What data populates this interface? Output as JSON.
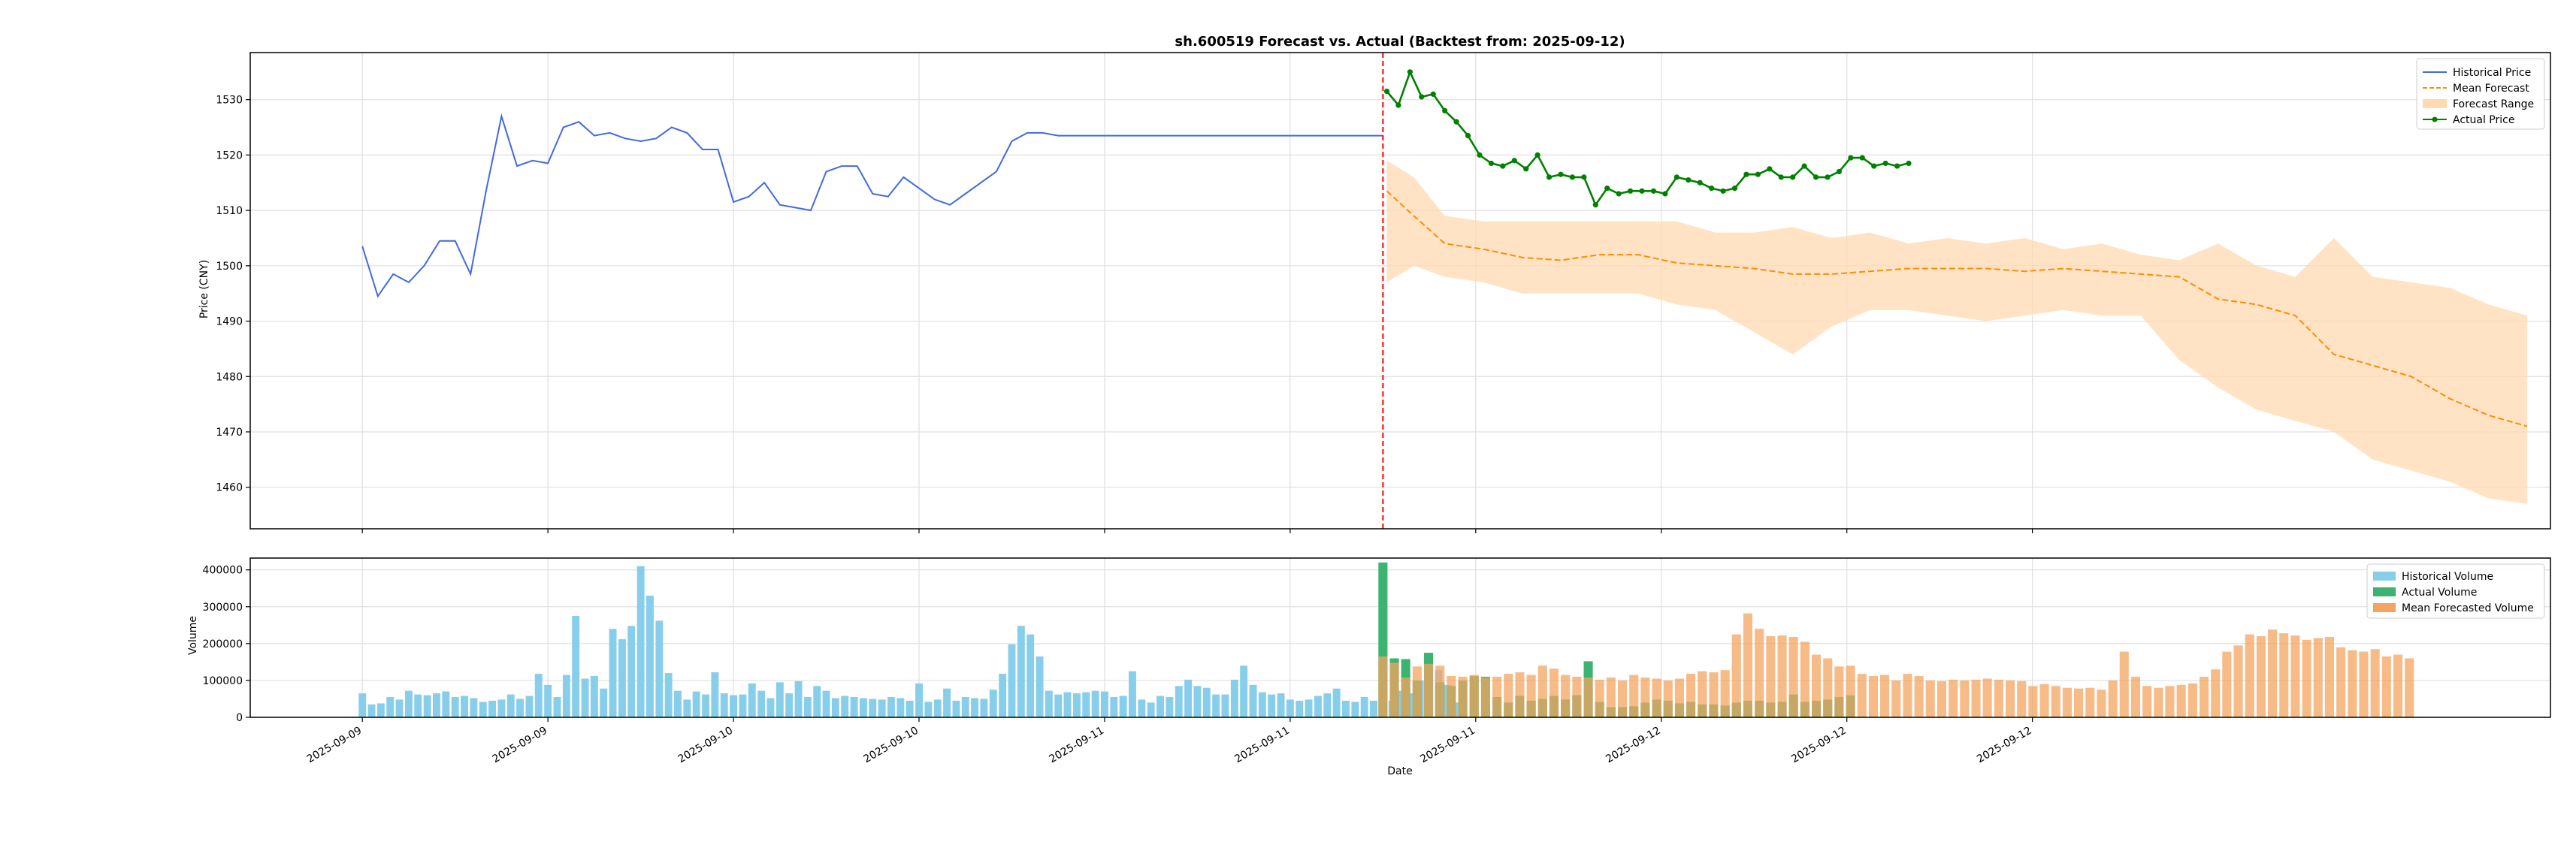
{
  "chart_data": [
    {
      "type": "line",
      "title": "sh.600519 Forecast vs. Actual (Backtest from: 2025-09-12)",
      "xlabel": "",
      "ylabel": "Price (CNY)",
      "ylim": [
        1452.5,
        1538.5
      ],
      "yticks": [
        1460,
        1470,
        1480,
        1490,
        1500,
        1510,
        1520,
        1530
      ],
      "grid": true,
      "legend_position": "top-right",
      "x_index_range": [
        -29,
        566
      ],
      "cutoff_index": 264,
      "series": [
        {
          "name": "Historical Price",
          "color": "#4169e1",
          "style": "solid",
          "x": [
            0,
            4,
            8,
            12,
            16,
            20,
            24,
            28,
            32,
            36,
            40,
            44,
            48,
            52,
            56,
            60,
            64,
            68,
            72,
            76,
            80,
            84,
            88,
            92,
            96,
            100,
            104,
            108,
            112,
            116,
            120,
            124,
            128,
            132,
            136,
            140,
            144,
            148,
            152,
            156,
            160,
            164,
            168,
            172,
            176,
            180,
            184,
            188,
            192,
            196,
            200,
            204,
            208,
            212,
            216,
            220,
            224,
            228,
            232,
            236,
            240,
            244,
            248,
            252,
            256,
            260,
            264
          ],
          "y": [
            1503.5,
            1494.5,
            1498.5,
            1497,
            1500,
            1504.5,
            1504.5,
            1498.5,
            1513.5,
            1527,
            1518,
            1519,
            1518.5,
            1525,
            1526,
            1523.5,
            1524,
            1523,
            1522.5,
            1523,
            1525,
            1524,
            1521,
            1521,
            1511.5,
            1512.5,
            1515,
            1511,
            1510.5,
            1510,
            1517,
            1518,
            1518,
            1513,
            1512.5,
            1516,
            1514,
            1512,
            1511,
            1513,
            1515,
            1517,
            1522.5,
            1524,
            1524,
            1523.5,
            1523.5,
            1523.5,
            1523.5,
            1523.5,
            1523.5,
            1523.5,
            1523.5,
            1523.5,
            1523.5,
            1523.5,
            1523.5,
            1523.5,
            1523.5,
            1523.5,
            1523.5,
            1523.5,
            1523.5,
            1523.5,
            1523.5,
            1523.5,
            1523.5
          ]
        },
        {
          "name": "Mean Forecast",
          "color": "#ff8c00",
          "style": "dashed",
          "x": [
            265,
            272,
            280,
            290,
            300,
            310,
            320,
            330,
            340,
            350,
            360,
            370,
            380,
            390,
            400,
            410,
            420,
            430,
            440,
            450,
            460,
            470,
            480,
            490,
            500,
            510,
            520,
            530,
            540,
            550,
            560
          ],
          "y": [
            1513.5,
            1509,
            1504,
            1503,
            1501.5,
            1501,
            1502,
            1502,
            1500.5,
            1500,
            1499.5,
            1498.5,
            1498.5,
            1499,
            1499.5,
            1499.5,
            1499.5,
            1499,
            1499.5,
            1499,
            1498.5,
            1498,
            1494,
            1493,
            1491,
            1484,
            1482,
            1480,
            1476,
            1473,
            1471
          ]
        },
        {
          "name": "Forecast Range",
          "color": "#ffdab0",
          "style": "band",
          "x": [
            265,
            272,
            280,
            290,
            300,
            310,
            320,
            330,
            340,
            350,
            360,
            370,
            380,
            390,
            400,
            410,
            420,
            430,
            440,
            450,
            460,
            470,
            480,
            490,
            500,
            510,
            520,
            530,
            540,
            550,
            560
          ],
          "y_low": [
            1497,
            1500,
            1498,
            1497,
            1495,
            1495,
            1495,
            1495,
            1493,
            1492,
            1488,
            1484,
            1489,
            1492,
            1492,
            1491,
            1490,
            1491,
            1492,
            1491,
            1491,
            1483,
            1478,
            1474,
            1472,
            1470,
            1465,
            1463,
            1461,
            1458,
            1457
          ],
          "y_high": [
            1519,
            1516,
            1509,
            1508,
            1508,
            1508,
            1508,
            1508,
            1508,
            1506,
            1506,
            1507,
            1505,
            1506,
            1504,
            1505,
            1504,
            1505,
            1503,
            1504,
            1502,
            1501,
            1504,
            1500,
            1498,
            1505,
            1498,
            1497,
            1496,
            1493,
            1491
          ]
        },
        {
          "name": "Actual Price",
          "color": "#008000",
          "style": "solid-marker",
          "x": [
            265,
            268,
            271,
            274,
            277,
            280,
            283,
            286,
            289,
            292,
            295,
            298,
            301,
            304,
            307,
            310,
            313,
            316,
            319,
            322,
            325,
            328,
            331,
            334,
            337,
            340,
            343,
            346,
            349,
            352,
            355,
            358,
            361,
            364,
            367,
            370,
            373,
            376,
            379,
            382,
            385,
            388,
            391,
            394,
            397,
            400
          ],
          "y": [
            1531.5,
            1529,
            1535,
            1530.5,
            1531,
            1528,
            1526,
            1523.5,
            1520,
            1518.5,
            1518,
            1519,
            1517.5,
            1520,
            1516,
            1516.5,
            1516,
            1516,
            1511,
            1514,
            1513,
            1513.5,
            1513.5,
            1513.5,
            1513,
            1516,
            1515.5,
            1515,
            1514,
            1513.5,
            1514,
            1516.5,
            1516.5,
            1517.5,
            1516,
            1516,
            1518,
            1516,
            1516,
            1517,
            1519.5,
            1519.5,
            1518,
            1518.5,
            1518,
            1518.5
          ]
        }
      ]
    },
    {
      "type": "bar",
      "title": "",
      "xlabel": "Date",
      "ylabel": "Volume",
      "ylim": [
        0,
        432000
      ],
      "yticks": [
        0,
        100000,
        200000,
        300000,
        400000
      ],
      "grid": true,
      "legend_position": "top-right",
      "x_index_range": [
        -29,
        566
      ],
      "x_ticks": [
        {
          "x": 0,
          "label": "2025-09-09"
        },
        {
          "x": 48,
          "label": "2025-09-09"
        },
        {
          "x": 96,
          "label": "2025-09-10"
        },
        {
          "x": 144,
          "label": "2025-09-10"
        },
        {
          "x": 192,
          "label": "2025-09-11"
        },
        {
          "x": 240,
          "label": "2025-09-11"
        },
        {
          "x": 288,
          "label": "2025-09-11"
        },
        {
          "x": 336,
          "label": "2025-09-12"
        },
        {
          "x": 384,
          "label": "2025-09-12"
        },
        {
          "x": 432,
          "label": "2025-09-12"
        }
      ],
      "series": [
        {
          "name": "Historical Volume",
          "color": "#87ceeb",
          "x_start": 0,
          "x_step": 2.4,
          "values": [
            65000,
            35000,
            38000,
            55000,
            48000,
            72000,
            62000,
            60000,
            65000,
            70000,
            55000,
            58000,
            52000,
            42000,
            45000,
            48000,
            62000,
            50000,
            58000,
            118000,
            88000,
            55000,
            115000,
            275000,
            105000,
            112000,
            78000,
            240000,
            212000,
            248000,
            410000,
            330000,
            262000,
            120000,
            72000,
            48000,
            70000,
            62000,
            122000,
            65000,
            60000,
            62000,
            92000,
            72000,
            52000,
            95000,
            65000,
            98000,
            55000,
            85000,
            72000,
            52000,
            58000,
            55000,
            52000,
            50000,
            48000,
            55000,
            52000,
            45000,
            92000,
            42000,
            48000,
            78000,
            45000,
            55000,
            52000,
            50000,
            75000,
            118000,
            198000,
            248000,
            225000,
            165000,
            72000,
            62000,
            68000,
            65000,
            68000,
            72000,
            70000,
            55000,
            58000,
            125000,
            48000,
            40000,
            58000,
            55000,
            85000,
            102000,
            85000,
            80000,
            62000,
            62000,
            102000,
            140000,
            88000,
            68000,
            62000,
            65000,
            48000,
            45000,
            48000,
            58000,
            65000,
            78000,
            45000,
            42000,
            55000,
            45000,
            38000,
            45000,
            72000,
            65000,
            100000,
            62000,
            128000,
            88000,
            40000
          ]
        },
        {
          "name": "Actual Volume",
          "color": "#3cb371",
          "x_start": 264,
          "x_step": 2.95,
          "values": [
            420000,
            160000,
            158000,
            100000,
            175000,
            95000,
            85000,
            100000,
            112000,
            110000,
            55000,
            40000,
            58000,
            45000,
            50000,
            58000,
            48000,
            60000,
            152000,
            42000,
            28000,
            28000,
            30000,
            40000,
            48000,
            45000,
            38000,
            42000,
            35000,
            35000,
            32000,
            40000,
            45000,
            45000,
            40000,
            42000,
            62000,
            42000,
            45000,
            48000,
            55000,
            60000
          ]
        },
        {
          "name": "Mean Forecasted Volume",
          "color": "#f4a460",
          "x_start": 264,
          "x_step": 2.95,
          "values": [
            165000,
            148000,
            108000,
            138000,
            145000,
            140000,
            112000,
            110000,
            115000,
            108000,
            110000,
            118000,
            122000,
            115000,
            140000,
            132000,
            115000,
            110000,
            108000,
            102000,
            108000,
            100000,
            115000,
            108000,
            105000,
            100000,
            105000,
            118000,
            125000,
            122000,
            128000,
            225000,
            282000,
            240000,
            220000,
            222000,
            218000,
            205000,
            170000,
            160000,
            138000,
            140000,
            118000,
            112000,
            115000,
            100000,
            118000,
            112000,
            100000,
            98000,
            102000,
            100000,
            102000,
            105000,
            102000,
            100000,
            98000,
            85000,
            90000,
            85000,
            80000,
            78000,
            80000,
            75000,
            100000,
            178000,
            110000,
            85000,
            80000,
            85000,
            88000,
            92000,
            110000,
            130000,
            178000,
            195000,
            225000,
            220000,
            238000,
            228000,
            222000,
            210000,
            215000,
            218000,
            190000,
            182000,
            178000,
            185000,
            165000,
            170000,
            160000
          ]
        }
      ]
    }
  ]
}
